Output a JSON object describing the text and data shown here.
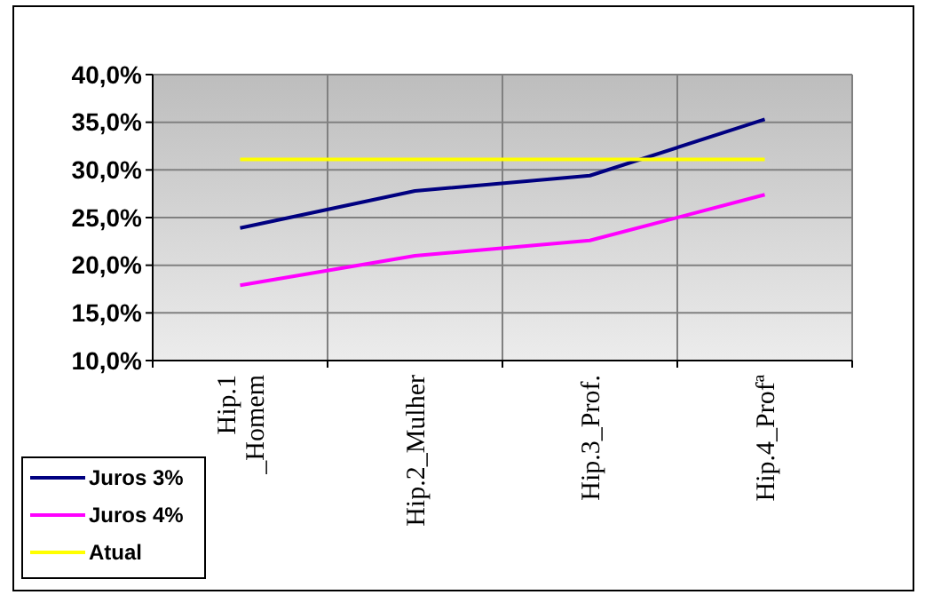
{
  "chart_data": {
    "type": "line",
    "categories": [
      "Hip.1 _Homem",
      "Hip.2_Mulher",
      "Hip.3_Prof.",
      "Hip.4_Profª"
    ],
    "series": [
      {
        "name": "Juros 3%",
        "color": "#000080",
        "values": [
          23.9,
          27.8,
          29.4,
          35.3
        ]
      },
      {
        "name": "Juros 4%",
        "color": "#ff00ff",
        "values": [
          17.9,
          21.0,
          22.6,
          27.4
        ]
      },
      {
        "name": "Atual",
        "color": "#ffff00",
        "values": [
          31.1,
          31.1,
          31.1,
          31.1
        ]
      }
    ],
    "ylim": [
      10,
      40
    ],
    "yticks": [
      {
        "value": 10,
        "label": "10,0%"
      },
      {
        "value": 15,
        "label": "15,0%"
      },
      {
        "value": 20,
        "label": "20,0%"
      },
      {
        "value": 25,
        "label": "25,0%"
      },
      {
        "value": 30,
        "label": "30,0%"
      },
      {
        "value": 35,
        "label": "35,0%"
      },
      {
        "value": 40,
        "label": "40,0%"
      }
    ],
    "grid": true,
    "legend": "bottom left",
    "marker": "none",
    "line_style": "solid"
  }
}
